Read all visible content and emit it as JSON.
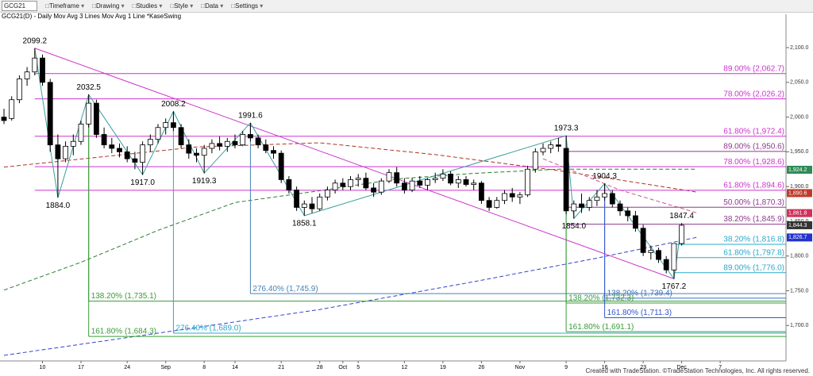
{
  "toolbar": {
    "symbol": "GCG21",
    "menus": [
      "Timeframe",
      "Drawing",
      "Studies",
      "Style",
      "Data",
      "Settings"
    ]
  },
  "chart_data": {
    "type": "candlestick",
    "legend_text": "GCG21(D) - Daily   Mov Avg 3 Lines   Mov Avg 1 Line   *KaseSwing",
    "footer": "Created with TradeStation. ©TradeStation Technologies, Inc. All rights reserved.",
    "categories": [
      null,
      null,
      null,
      null,
      null,
      "10",
      null,
      null,
      null,
      null,
      "17",
      null,
      null,
      null,
      null,
      null,
      "24",
      null,
      null,
      null,
      null,
      "Sep",
      null,
      null,
      null,
      null,
      "8",
      null,
      null,
      null,
      "14",
      null,
      null,
      null,
      null,
      null,
      "21",
      null,
      null,
      null,
      null,
      "28",
      null,
      null,
      "Oct",
      null,
      "5",
      null,
      null,
      null,
      null,
      null,
      "12",
      null,
      null,
      null,
      null,
      "19",
      null,
      null,
      null,
      null,
      "26",
      null,
      null,
      null,
      null,
      "Nov",
      null,
      null,
      null,
      null,
      null,
      "9",
      null,
      null,
      null,
      null,
      "16",
      null,
      null,
      null,
      null,
      "23",
      null,
      null,
      null,
      null,
      "Dec",
      null,
      null,
      null,
      null,
      "7"
    ],
    "open": [
      2000,
      1998,
      2025,
      2055,
      2065,
      2085,
      2050,
      1960,
      1940,
      1958,
      1965,
      1990,
      2020,
      1975,
      1960,
      1955,
      1950,
      1940,
      1935,
      1960,
      1968,
      1985,
      1992,
      1985,
      1960,
      1948,
      1945,
      1955,
      1962,
      1958,
      1965,
      1960,
      1975,
      1970,
      1960,
      1952,
      1948,
      1910,
      1895,
      1870,
      1875,
      1868,
      1885,
      1895,
      1905,
      1900,
      1910,
      1912,
      1898,
      1892,
      1908,
      1920,
      1905,
      1895,
      1908,
      1902,
      1910,
      1912,
      1918,
      1905,
      1910,
      1903,
      1905,
      1880,
      1870,
      1880,
      1890,
      1885,
      1888,
      1925,
      1950,
      1955,
      1960,
      1955,
      1865,
      1875,
      1870,
      1880,
      1885,
      1890,
      1875,
      1865,
      1858,
      1840,
      1805,
      1808,
      1795,
      1780,
      1818,
      null,
      null,
      null,
      null,
      null
    ],
    "high": [
      2012,
      2030,
      2060,
      2072,
      2099.2,
      2090,
      2055,
      1975,
      1965,
      1975,
      1995,
      2032.5,
      2025,
      1985,
      1970,
      1962,
      1958,
      1950,
      1965,
      1975,
      1990,
      1998,
      2008.2,
      1990,
      1968,
      1955,
      1960,
      1968,
      1972,
      1970,
      1975,
      1980,
      1991.6,
      1975,
      1968,
      1958,
      1952,
      1915,
      1900,
      1880,
      1885,
      1890,
      1900,
      1910,
      1912,
      1915,
      1918,
      1920,
      1905,
      1912,
      1925,
      1928,
      1912,
      1912,
      1915,
      1912,
      1920,
      1925,
      1922,
      1915,
      1915,
      1910,
      1908,
      1885,
      1885,
      1895,
      1898,
      1892,
      1930,
      1955,
      1962,
      1965,
      1970,
      1973.3,
      1880,
      1890,
      1885,
      1895,
      1904.3,
      1895,
      1880,
      1870,
      1865,
      1845,
      1815,
      1812,
      1800,
      1815,
      1847.4,
      null,
      null,
      null,
      null,
      null
    ],
    "low": [
      1990,
      1995,
      2020,
      2045,
      2060,
      2045,
      1950,
      1884,
      1935,
      1945,
      1960,
      1985,
      1970,
      1955,
      1948,
      1942,
      1935,
      1925,
      1917,
      1950,
      1962,
      1975,
      1980,
      1955,
      1940,
      1935,
      1919.3,
      1948,
      1952,
      1950,
      1955,
      1958,
      1965,
      1955,
      1948,
      1940,
      1905,
      1890,
      1865,
      1858.1,
      1862,
      1865,
      1880,
      1890,
      1895,
      1895,
      1900,
      1895,
      1885,
      1888,
      1905,
      1900,
      1890,
      1892,
      1898,
      1895,
      1905,
      1908,
      1902,
      1898,
      1900,
      1895,
      1875,
      1865,
      1868,
      1875,
      1878,
      1875,
      1885,
      1920,
      1945,
      1948,
      1950,
      1860,
      1854,
      1862,
      1865,
      1872,
      1880,
      1870,
      1858,
      1850,
      1835,
      1800,
      1795,
      1790,
      1775,
      1767.2,
      1815,
      null,
      null,
      null,
      null,
      null
    ],
    "close": [
      1995,
      2025,
      2055,
      2065,
      2085,
      2050,
      1960,
      1940,
      1958,
      1965,
      1990,
      2020,
      1975,
      1960,
      1955,
      1950,
      1940,
      1935,
      1960,
      1968,
      1985,
      1992,
      1985,
      1960,
      1948,
      1945,
      1955,
      1962,
      1958,
      1965,
      1960,
      1975,
      1970,
      1960,
      1952,
      1948,
      1910,
      1895,
      1870,
      1875,
      1868,
      1885,
      1895,
      1905,
      1900,
      1910,
      1912,
      1898,
      1892,
      1908,
      1920,
      1905,
      1895,
      1908,
      1902,
      1910,
      1912,
      1918,
      1905,
      1910,
      1903,
      1905,
      1880,
      1870,
      1880,
      1890,
      1885,
      1888,
      1925,
      1950,
      1955,
      1960,
      1958,
      1865,
      1875,
      1870,
      1880,
      1885,
      1890,
      1875,
      1865,
      1858,
      1840,
      1805,
      1808,
      1795,
      1780,
      1818,
      1844.3,
      null,
      null,
      null,
      null,
      null
    ],
    "up_color": "#ffffff",
    "down_color": "#000000",
    "ylim": [
      1649,
      2148
    ],
    "yticks": [
      {
        "value": 2100,
        "label": "2,100.0"
      },
      {
        "value": 2050,
        "label": "2,050.0"
      },
      {
        "value": 2000,
        "label": "2,000.0"
      },
      {
        "value": 1950,
        "label": "1,950.0"
      },
      {
        "value": 1900,
        "label": "1,900.0"
      },
      {
        "value": 1850,
        "label": "1,850.0"
      },
      {
        "value": 1800,
        "label": "1,800.0"
      },
      {
        "value": 1750,
        "label": "1,750.0"
      },
      {
        "value": 1700,
        "label": "1,700.0"
      }
    ],
    "moving_averages": [
      {
        "color": "#b03020",
        "x": [
          0,
          25,
          41,
          56,
          72,
          82,
          90
        ],
        "values": [
          1928,
          1957,
          1963,
          1946,
          1923,
          1906,
          1892
        ]
      },
      {
        "color": "#2e7d32",
        "x": [
          0,
          10,
          20,
          30,
          41,
          51,
          61,
          72,
          90
        ],
        "values": [
          1751,
          1791,
          1837,
          1877,
          1894,
          1911,
          1919,
          1925,
          1925
        ]
      },
      {
        "color": "#d05090",
        "x": [
          70,
          80,
          90
        ],
        "values": [
          1940,
          1895,
          1862
        ]
      },
      {
        "color": "#3344cc",
        "x": [
          0,
          20,
          41,
          61,
          77,
          90
        ],
        "values": [
          1657,
          1689,
          1723,
          1763,
          1797,
          1827
        ]
      }
    ],
    "swing_color": "#3a9e9e",
    "trend_color": "#cc33cc",
    "swings": [
      {
        "x": 4,
        "value": 2099.2,
        "position": "above"
      },
      {
        "x": 7,
        "value": 1884,
        "label": "1884.0",
        "position": "below"
      },
      {
        "x": 11,
        "value": 2032.5,
        "position": "above"
      },
      {
        "x": 18,
        "value": 1917,
        "label": "1917.0",
        "position": "below"
      },
      {
        "x": 22,
        "value": 2008.2,
        "position": "above"
      },
      {
        "x": 26,
        "value": 1919.3,
        "position": "below"
      },
      {
        "x": 32,
        "value": 1991.6,
        "position": "above"
      },
      {
        "x": 39,
        "value": 1858.1,
        "position": "below"
      },
      {
        "x": 73,
        "value": 1973.3,
        "position": "above"
      },
      {
        "x": 74,
        "value": 1854,
        "label": "1854.0",
        "position": "below"
      },
      {
        "x": 78,
        "value": 1904.3,
        "position": "above"
      },
      {
        "x": 87,
        "value": 1767.2,
        "position": "below"
      },
      {
        "x": 88,
        "value": 1847.4,
        "position": "above"
      }
    ],
    "levels": [
      {
        "text": "89.00% (2,062.7)",
        "value": 2062.7,
        "from": 4,
        "color": "#cc33cc",
        "label_at": "right"
      },
      {
        "text": "78.00% (2,026.2)",
        "value": 2026.2,
        "from": 4,
        "color": "#cc33cc",
        "label_at": "right"
      },
      {
        "text": "61.80% (1,972.4)",
        "value": 1972.4,
        "from": 4,
        "color": "#cc33cc",
        "label_at": "right"
      },
      {
        "text": "89.00% (1,950.6)",
        "value": 1950.6,
        "from": 73,
        "color": "#8e3a8e",
        "label_at": "right"
      },
      {
        "text": "78.00% (1,928.6)",
        "value": 1928.6,
        "from": 4,
        "color": "#cc33cc",
        "label_at": "right"
      },
      {
        "text": "61.80% (1,894.6)",
        "value": 1894.6,
        "from": 4,
        "color": "#cc33cc",
        "label_at": "right"
      },
      {
        "text": "50.00% (1,870.3)",
        "value": 1870.3,
        "from": 73,
        "color": "#8e3a8e",
        "label_at": "right"
      },
      {
        "text": "38.20% (1,845.9)",
        "value": 1845.9,
        "from": 73,
        "color": "#8e3a8e",
        "label_at": "right"
      },
      {
        "text": "38.20% (1,816.8)",
        "value": 1816.8,
        "from": 87,
        "color": "#2aa8c8",
        "label_at": "right"
      },
      {
        "text": "61.80% (1,797.8)",
        "value": 1797.8,
        "from": 87,
        "color": "#2aa8c8",
        "label_at": "right"
      },
      {
        "text": "89.00% (1,776.0)",
        "value": 1776,
        "from": 87,
        "color": "#2aa8c8",
        "label_at": "right"
      },
      {
        "text": "276.40% (1,745.9)",
        "value": 1745.9,
        "from": 32,
        "color": "#4682b4",
        "label_at": "start"
      },
      {
        "text": "138.20% (1,739.4)",
        "value": 1739.4,
        "from": 78,
        "color": "#3a6fc0",
        "label_at": "start"
      },
      {
        "text": "138.20% (1,735.1)",
        "value": 1735.1,
        "from": 11,
        "color": "#3a9a3a",
        "label_at": "start"
      },
      {
        "text": "138.20% (1,732.3)",
        "value": 1732.3,
        "from": 73,
        "color": "#3a9a3a",
        "label_at": "start"
      },
      {
        "text": "161.80% (1,711.3)",
        "value": 1711.3,
        "from": 78,
        "color": "#3355cc",
        "label_at": "start"
      },
      {
        "text": "161.80% (1,691.1)",
        "value": 1691.1,
        "from": 73,
        "color": "#3a9a3a",
        "label_at": "start"
      },
      {
        "text": "276.40% (1,689.0)",
        "value": 1689,
        "from": 22,
        "color": "#2aa8c8",
        "label_at": "start"
      },
      {
        "text": "161.80% (1,684.3)",
        "value": 1684.3,
        "from": 11,
        "color": "#3a9a3a",
        "label_at": "start"
      }
    ],
    "price_tags": [
      {
        "value": 1924.2,
        "label": "1,924.2",
        "color": "#2e8b57"
      },
      {
        "value": 1890.6,
        "label": "1,890.6",
        "color": "#c0392b"
      },
      {
        "value": 1861.8,
        "label": "1,861.8",
        "color": "#d0305a"
      },
      {
        "value": 1844.3,
        "label": "1,844.3",
        "color": "#333333"
      },
      {
        "value": 1826.7,
        "label": "1,826.7",
        "color": "#2233cc"
      }
    ]
  }
}
